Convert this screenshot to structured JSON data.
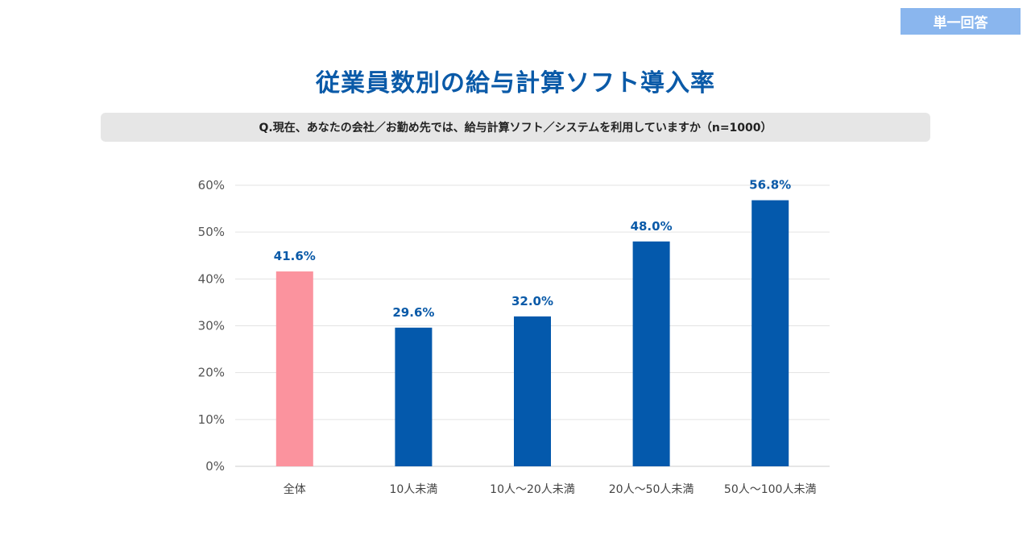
{
  "badge": {
    "label": "単一回答",
    "color": "#8ab6ee"
  },
  "header": {
    "title": "従業員数別の給与計算ソフト導入率",
    "question": "Q.現在、あなたの会社／お勤め先では、給与計算ソフト／システムを利用していますか（n=1000）"
  },
  "colors": {
    "highlight": "#fb939e",
    "primary": "#0459ac",
    "label": "#0a5aa8",
    "grid": "#e3e3e3"
  },
  "chart_data": {
    "type": "bar",
    "title": "従業員数別の給与計算ソフト導入率",
    "xlabel": "",
    "ylabel": "",
    "ylim": [
      0,
      60
    ],
    "yticks": [
      0,
      10,
      20,
      30,
      40,
      50,
      60
    ],
    "ytick_labels": [
      "0%",
      "10%",
      "20%",
      "30%",
      "40%",
      "50%",
      "60%"
    ],
    "grid": true,
    "categories": [
      "全体",
      "10人未満",
      "10人〜20人未満",
      "20人〜50人未満",
      "50人〜100人未満"
    ],
    "values": [
      41.6,
      29.6,
      32.0,
      48.0,
      56.8
    ],
    "value_labels": [
      "41.6%",
      "29.6%",
      "32.0%",
      "48.0%",
      "56.8%"
    ],
    "highlight_index": 0
  }
}
